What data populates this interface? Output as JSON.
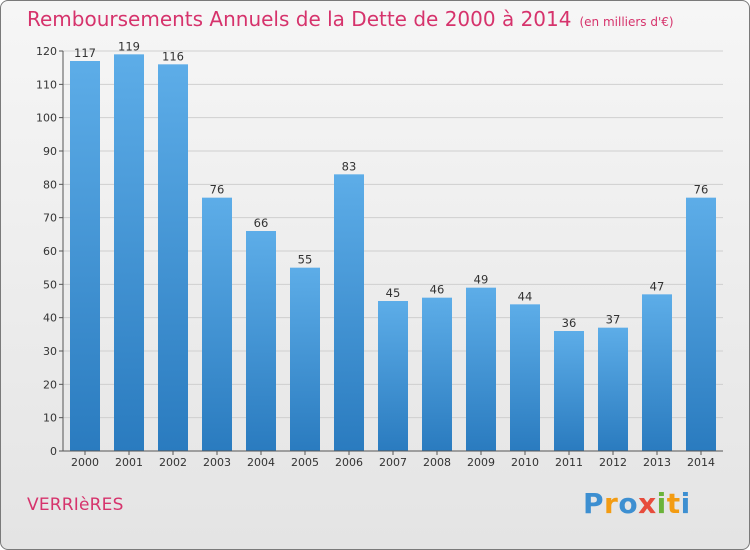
{
  "title": {
    "main": "Remboursements Annuels de la Dette de 2000 à 2014",
    "unit": "(en milliers d'€)"
  },
  "commune": "VERRIèRES",
  "logo": {
    "text": "Proxiti",
    "letters": [
      {
        "ch": "P",
        "color": "#3d8fd1"
      },
      {
        "ch": "r",
        "color": "#f39c12"
      },
      {
        "ch": "o",
        "color": "#3d8fd1"
      },
      {
        "ch": "x",
        "color": "#e74c3c"
      },
      {
        "ch": "i",
        "color": "#6bb33a"
      },
      {
        "ch": "t",
        "color": "#f39c12"
      },
      {
        "ch": "i",
        "color": "#3d8fd1"
      }
    ]
  },
  "colors": {
    "accent": "#d6336c",
    "bar_top": "#5dade8",
    "bar_bottom": "#2a7bbf",
    "grid": "#cfcfcf"
  },
  "chart_data": {
    "type": "bar",
    "categories": [
      "2000",
      "2001",
      "2002",
      "2003",
      "2004",
      "2005",
      "2006",
      "2007",
      "2008",
      "2009",
      "2010",
      "2011",
      "2012",
      "2013",
      "2014"
    ],
    "values": [
      117,
      119,
      116,
      76,
      66,
      55,
      83,
      45,
      46,
      49,
      44,
      36,
      37,
      47,
      76
    ],
    "title": "Remboursements Annuels de la Dette de 2000 à 2014",
    "ylim": [
      0,
      120
    ],
    "yticks": [
      0,
      10,
      20,
      30,
      40,
      50,
      60,
      70,
      80,
      90,
      100,
      110,
      120
    ],
    "grid": true,
    "data_labels": true
  }
}
